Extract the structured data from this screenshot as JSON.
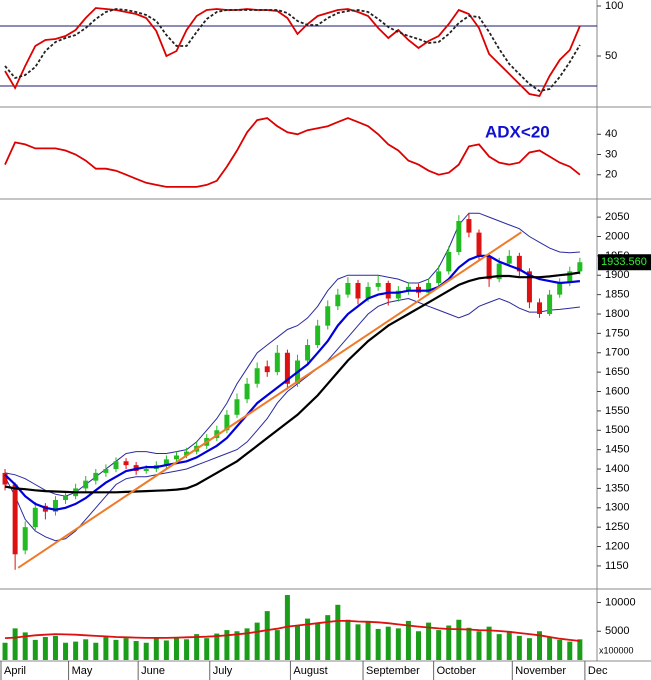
{
  "chart_data": [
    {
      "type": "line",
      "ylim": [
        0,
        105
      ],
      "yticks": [
        50,
        100
      ],
      "reference_lines": [
        20,
        80
      ],
      "reference_color": "#1a1a6e",
      "series": [
        {
          "color": "#dd0000",
          "values": [
            35,
            18,
            40,
            60,
            66,
            67,
            70,
            76,
            88,
            98,
            97,
            96,
            94,
            92,
            88,
            75,
            50,
            55,
            76,
            90,
            96,
            97,
            96,
            96,
            97,
            96,
            96,
            95,
            88,
            72,
            82,
            90,
            93,
            96,
            97,
            94,
            90,
            78,
            68,
            76,
            66,
            58,
            65,
            70,
            82,
            96,
            92,
            78,
            52,
            42,
            32,
            22,
            12,
            10,
            30,
            46,
            56,
            80
          ]
        },
        {
          "color": "#222222",
          "dash": true,
          "values": [
            40,
            28,
            31,
            39,
            55,
            64,
            68,
            71,
            78,
            87,
            94,
            97,
            96,
            94,
            91,
            85,
            71,
            60,
            60,
            74,
            87,
            94,
            96,
            96,
            96,
            96,
            96,
            96,
            93,
            85,
            81,
            81,
            88,
            93,
            95,
            96,
            94,
            87,
            79,
            74,
            70,
            67,
            63,
            64,
            72,
            83,
            90,
            89,
            74,
            57,
            42,
            32,
            22,
            15,
            17,
            29,
            44,
            61
          ]
        }
      ]
    },
    {
      "type": "line",
      "ylim": [
        8.5,
        52
      ],
      "yticks": [
        20,
        30,
        40
      ],
      "annotation": "ADX<20",
      "annotation_color": "#1010d0",
      "series": [
        {
          "color": "#dd0000",
          "values": [
            25,
            36,
            35,
            33,
            33,
            33,
            32,
            30,
            27,
            23,
            23,
            22,
            20,
            18,
            16,
            15,
            14,
            14,
            14,
            14,
            15,
            17,
            24,
            32,
            41,
            47,
            48,
            44,
            41,
            40,
            42,
            43,
            44,
            46,
            48,
            46,
            44,
            40,
            35,
            32,
            27,
            25,
            22,
            20,
            21,
            25,
            34,
            35,
            29,
            26,
            25,
            26,
            31,
            32,
            29,
            26,
            24,
            20
          ]
        }
      ]
    },
    {
      "type": "candlestick",
      "ylim": [
        1093,
        2089
      ],
      "yticks": [
        1150,
        1200,
        1250,
        1300,
        1350,
        1400,
        1450,
        1500,
        1550,
        1600,
        1650,
        1700,
        1750,
        1800,
        1850,
        1900,
        1950,
        2000,
        2050
      ],
      "up_color": "#22bb22",
      "down_color": "#dd1111",
      "last_value_label": "1933.560",
      "candles": [
        [
          1390,
          1400,
          1345,
          1360
        ],
        [
          1360,
          1365,
          1140,
          1180
        ],
        [
          1190,
          1265,
          1180,
          1250
        ],
        [
          1250,
          1315,
          1240,
          1300
        ],
        [
          1305,
          1312,
          1270,
          1290
        ],
        [
          1290,
          1330,
          1280,
          1320
        ],
        [
          1320,
          1340,
          1310,
          1330
        ],
        [
          1330,
          1362,
          1322,
          1350
        ],
        [
          1350,
          1382,
          1340,
          1370
        ],
        [
          1370,
          1400,
          1360,
          1390
        ],
        [
          1390,
          1412,
          1380,
          1400
        ],
        [
          1400,
          1430,
          1392,
          1420
        ],
        [
          1420,
          1428,
          1400,
          1410
        ],
        [
          1410,
          1418,
          1385,
          1395
        ],
        [
          1395,
          1410,
          1388,
          1400
        ],
        [
          1400,
          1420,
          1392,
          1410
        ],
        [
          1410,
          1435,
          1402,
          1425
        ],
        [
          1425,
          1445,
          1418,
          1435
        ],
        [
          1435,
          1455,
          1428,
          1445
        ],
        [
          1445,
          1470,
          1438,
          1460
        ],
        [
          1460,
          1490,
          1452,
          1480
        ],
        [
          1480,
          1512,
          1472,
          1500
        ],
        [
          1500,
          1552,
          1492,
          1540
        ],
        [
          1540,
          1595,
          1532,
          1580
        ],
        [
          1580,
          1635,
          1570,
          1620
        ],
        [
          1620,
          1675,
          1610,
          1660
        ],
        [
          1665,
          1680,
          1638,
          1650
        ],
        [
          1650,
          1720,
          1642,
          1700
        ],
        [
          1700,
          1708,
          1605,
          1620
        ],
        [
          1620,
          1695,
          1612,
          1680
        ],
        [
          1680,
          1735,
          1670,
          1720
        ],
        [
          1720,
          1785,
          1712,
          1770
        ],
        [
          1770,
          1835,
          1760,
          1820
        ],
        [
          1820,
          1865,
          1810,
          1850
        ],
        [
          1850,
          1895,
          1842,
          1880
        ],
        [
          1880,
          1888,
          1825,
          1840
        ],
        [
          1840,
          1882,
          1832,
          1870
        ],
        [
          1870,
          1900,
          1860,
          1880
        ],
        [
          1880,
          1886,
          1822,
          1840
        ],
        [
          1840,
          1872,
          1832,
          1860
        ],
        [
          1860,
          1882,
          1850,
          1870
        ],
        [
          1870,
          1878,
          1842,
          1855
        ],
        [
          1855,
          1892,
          1848,
          1880
        ],
        [
          1880,
          1925,
          1872,
          1910
        ],
        [
          1910,
          1975,
          1902,
          1960
        ],
        [
          1960,
          2055,
          1952,
          2040
        ],
        [
          2045,
          2060,
          1998,
          2010
        ],
        [
          2010,
          2018,
          1940,
          1950
        ],
        [
          1950,
          1958,
          1870,
          1890
        ],
        [
          1890,
          1945,
          1882,
          1930
        ],
        [
          1930,
          1965,
          1922,
          1950
        ],
        [
          1950,
          1958,
          1898,
          1910
        ],
        [
          1910,
          1918,
          1815,
          1830
        ],
        [
          1830,
          1840,
          1790,
          1800
        ],
        [
          1800,
          1862,
          1795,
          1850
        ],
        [
          1850,
          1892,
          1842,
          1880
        ],
        [
          1880,
          1922,
          1872,
          1910
        ],
        [
          1910,
          1945,
          1902,
          1933.56
        ]
      ],
      "series": [
        {
          "color": "#2a2aa0",
          "width": 1,
          "values": [
            1390,
            1385,
            1375,
            1360,
            1345,
            1335,
            1330,
            1340,
            1360,
            1380,
            1400,
            1420,
            1440,
            1445,
            1445,
            1440,
            1440,
            1445,
            1450,
            1470,
            1500,
            1530,
            1570,
            1620,
            1660,
            1700,
            1720,
            1740,
            1760,
            1770,
            1790,
            1820,
            1860,
            1890,
            1900,
            1900,
            1900,
            1900,
            1895,
            1890,
            1880,
            1880,
            1890,
            1920,
            1970,
            2030,
            2060,
            2060,
            2050,
            2040,
            2030,
            2020,
            2000,
            1985,
            1970,
            1960,
            1958,
            1960
          ]
        },
        {
          "color": "#2a2aa0",
          "width": 1,
          "values": [
            1380,
            1330,
            1270,
            1240,
            1225,
            1215,
            1220,
            1240,
            1270,
            1300,
            1330,
            1360,
            1375,
            1380,
            1380,
            1385,
            1390,
            1395,
            1400,
            1410,
            1420,
            1430,
            1440,
            1450,
            1470,
            1500,
            1530,
            1570,
            1600,
            1620,
            1640,
            1660,
            1680,
            1710,
            1740,
            1770,
            1800,
            1820,
            1830,
            1835,
            1840,
            1830,
            1820,
            1810,
            1800,
            1790,
            1800,
            1820,
            1830,
            1840,
            1830,
            1815,
            1805,
            1805,
            1810,
            1812,
            1815,
            1818
          ]
        },
        {
          "color": "#0000dd",
          "width": 2.2,
          "values": [
            1385,
            1360,
            1330,
            1310,
            1300,
            1295,
            1300,
            1310,
            1325,
            1345,
            1365,
            1380,
            1395,
            1400,
            1405,
            1405,
            1410,
            1415,
            1420,
            1430,
            1445,
            1460,
            1480,
            1510,
            1540,
            1570,
            1590,
            1610,
            1630,
            1650,
            1670,
            1700,
            1730,
            1770,
            1800,
            1820,
            1840,
            1850,
            1855,
            1855,
            1860,
            1860,
            1860,
            1870,
            1890,
            1920,
            1940,
            1950,
            1950,
            1935,
            1925,
            1915,
            1900,
            1890,
            1885,
            1880,
            1882,
            1885
          ]
        },
        {
          "color": "#000000",
          "width": 2.2,
          "values": [
            1355,
            1350,
            1348,
            1345,
            1343,
            1342,
            1341,
            1340,
            1340,
            1340,
            1340,
            1340,
            1341,
            1342,
            1343,
            1344,
            1345,
            1347,
            1350,
            1360,
            1375,
            1390,
            1405,
            1420,
            1440,
            1460,
            1480,
            1500,
            1520,
            1540,
            1565,
            1590,
            1620,
            1650,
            1680,
            1705,
            1730,
            1750,
            1770,
            1785,
            1800,
            1815,
            1830,
            1845,
            1860,
            1875,
            1885,
            1892,
            1895,
            1898,
            1898,
            1895,
            1895,
            1895,
            1897,
            1900,
            1903,
            1907
          ]
        }
      ],
      "trendline": {
        "color": "#f07a28",
        "x": [
          1.3,
          51.2
        ],
        "values": [
          1145,
          2011
        ]
      }
    },
    {
      "type": "bar",
      "ylim": [
        0,
        12000
      ],
      "yticks": [
        5000,
        10000
      ],
      "unit_label": "x100000",
      "color": "#1a9e1a",
      "values": [
        3000,
        5500,
        4800,
        3500,
        4000,
        4200,
        3000,
        3200,
        3600,
        3000,
        4200,
        3500,
        3800,
        3300,
        3000,
        3800,
        3400,
        4000,
        3600,
        4500,
        3800,
        4600,
        5200,
        5000,
        5500,
        6500,
        8500,
        5200,
        11300,
        6000,
        7200,
        6500,
        7800,
        9600,
        7000,
        6200,
        6800,
        5400,
        5800,
        5500,
        6800,
        5000,
        6500,
        5200,
        6000,
        7000,
        5600,
        5000,
        5800,
        4500,
        5000,
        4200,
        3800,
        5000,
        4000,
        3500,
        3200,
        3600
      ],
      "average": {
        "color": "#dd1111",
        "values": [
          3800,
          3900,
          4100,
          4300,
          4400,
          4500,
          4450,
          4400,
          4300,
          4200,
          4100,
          4000,
          3950,
          3900,
          3850,
          3850,
          3850,
          3900,
          3950,
          4000,
          4050,
          4150,
          4300,
          4450,
          4650,
          4900,
          5200,
          5450,
          5800,
          6000,
          6200,
          6400,
          6600,
          6800,
          6800,
          6700,
          6650,
          6550,
          6400,
          6200,
          6000,
          5800,
          5650,
          5500,
          5400,
          5350,
          5300,
          5200,
          5150,
          5050,
          4900,
          4700,
          4500,
          4300,
          4000,
          3700,
          3500,
          3300
        ]
      },
      "xlim": [
        -0.5,
        58.7
      ],
      "xticks": [
        {
          "value": -0.4,
          "label": "April"
        },
        {
          "value": 6.3,
          "label": "May"
        },
        {
          "value": 13.2,
          "label": "June"
        },
        {
          "value": 20.3,
          "label": "July"
        },
        {
          "value": 28.3,
          "label": "August"
        },
        {
          "value": 35.5,
          "label": "September"
        },
        {
          "value": 42.5,
          "label": "October"
        },
        {
          "value": 50.3,
          "label": "November"
        },
        {
          "value": 57.5,
          "label": "Dec"
        }
      ]
    }
  ]
}
